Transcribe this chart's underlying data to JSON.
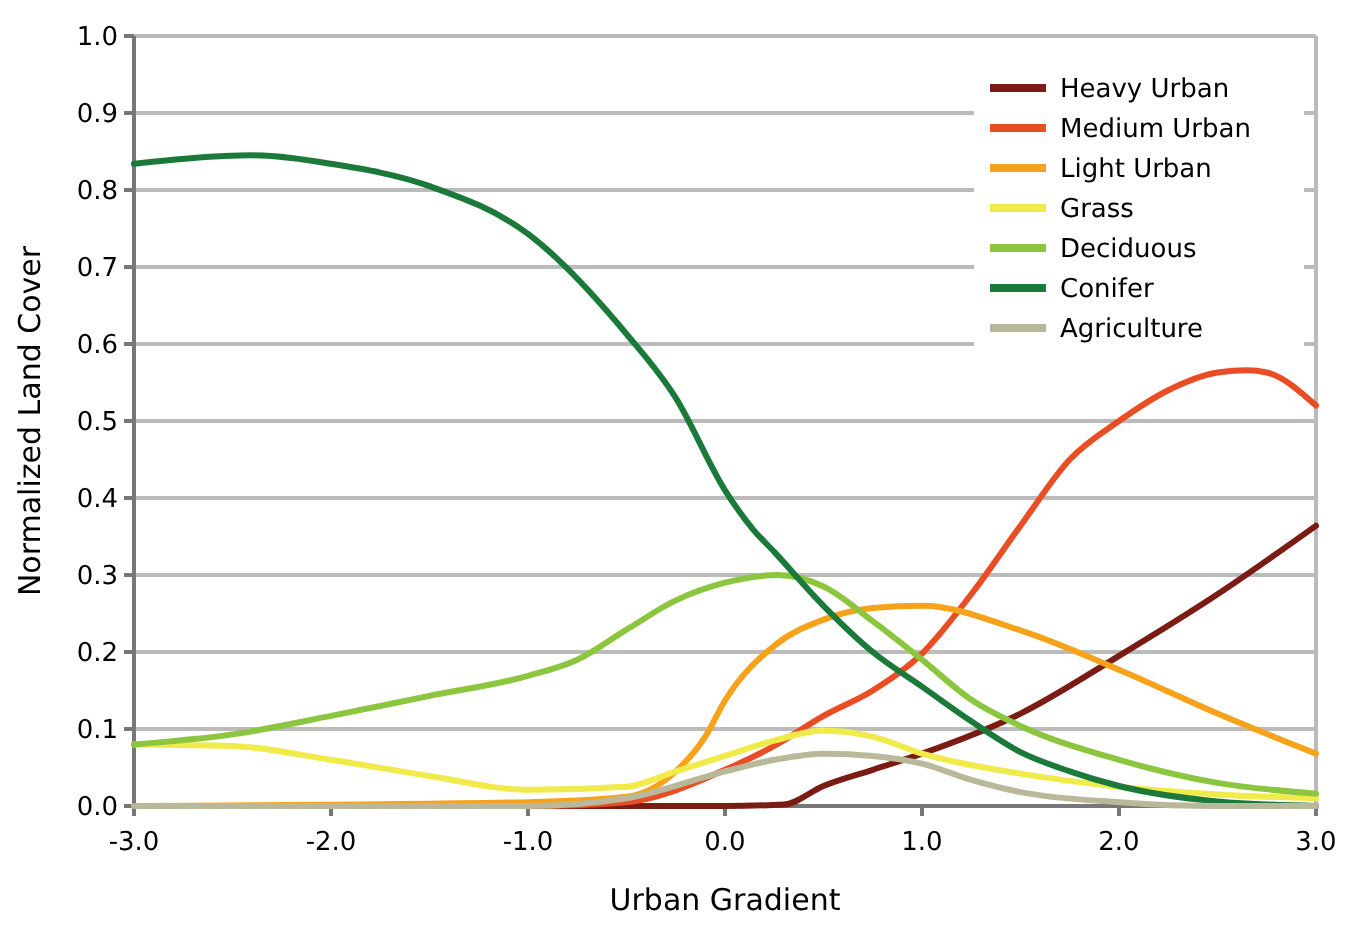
{
  "chart_data": {
    "type": "line",
    "xlabel": "Urban Gradient",
    "ylabel": "Normalized Land Cover",
    "xlim": [
      -3,
      3
    ],
    "ylim": [
      0,
      1
    ],
    "xticks": [
      {
        "value": -3,
        "label": "-3.0"
      },
      {
        "value": -2,
        "label": "-2.0"
      },
      {
        "value": -1,
        "label": "-1.0"
      },
      {
        "value": 0,
        "label": "0.0"
      },
      {
        "value": 1,
        "label": "1.0"
      },
      {
        "value": 2,
        "label": "2.0"
      },
      {
        "value": 3,
        "label": "3.0"
      }
    ],
    "yticks": [
      {
        "value": 0,
        "label": "0.0"
      },
      {
        "value": 0.1,
        "label": "0.1"
      },
      {
        "value": 0.2,
        "label": "0.2"
      },
      {
        "value": 0.3,
        "label": "0.3"
      },
      {
        "value": 0.4,
        "label": "0.4"
      },
      {
        "value": 0.5,
        "label": "0.5"
      },
      {
        "value": 0.6,
        "label": "0.6"
      },
      {
        "value": 0.7,
        "label": "0.7"
      },
      {
        "value": 0.8,
        "label": "0.8"
      },
      {
        "value": 0.9,
        "label": "0.9"
      },
      {
        "value": 1,
        "label": "1.0"
      }
    ],
    "grid": "y",
    "legend": "top right",
    "marker": "none",
    "line_style": "solid",
    "series": [
      {
        "name": "Heavy Urban",
        "color": "#7b1c14",
        "x": [
          -3,
          -1,
          0,
          0.3,
          0.5,
          0.75,
          1,
          1.5,
          2,
          2.5,
          3
        ],
        "values": [
          0,
          0,
          0,
          0.002,
          0.026,
          0.047,
          0.068,
          0.12,
          0.195,
          0.275,
          0.364
        ]
      },
      {
        "name": "Medium Urban",
        "color": "#ea4c24",
        "x": [
          -3,
          -1,
          -0.5,
          0,
          0.25,
          0.5,
          0.75,
          1,
          1.25,
          1.5,
          1.75,
          2,
          2.25,
          2.5,
          2.65,
          2.75,
          3
        ],
        "values": [
          0,
          0,
          0.005,
          0.047,
          0.078,
          0.117,
          0.15,
          0.198,
          0.275,
          0.364,
          0.45,
          0.5,
          0.54,
          0.563,
          0.566,
          0.563,
          0.52
        ]
      },
      {
        "name": "Light Urban",
        "color": "#f7a21b",
        "x": [
          -3,
          -1,
          -0.5,
          -0.25,
          -0.1,
          0,
          0.25,
          0.5,
          0.75,
          1,
          1.5,
          2,
          2.5,
          3
        ],
        "values": [
          0,
          0.005,
          0.012,
          0.045,
          0.09,
          0.137,
          0.208,
          0.242,
          0.257,
          0.26,
          0.228,
          0.177,
          0.12,
          0.068
        ]
      },
      {
        "name": "Grass",
        "color": "#f0ea4a",
        "x": [
          -3,
          -2.5,
          -2,
          -1.5,
          -1,
          -0.5,
          -0.25,
          0,
          0.25,
          0.5,
          0.75,
          1,
          1.5,
          2,
          2.5,
          3
        ],
        "values": [
          0.08,
          0.078,
          0.06,
          0.039,
          0.021,
          0.025,
          0.045,
          0.065,
          0.085,
          0.098,
          0.09,
          0.068,
          0.042,
          0.025,
          0.015,
          0.01
        ]
      },
      {
        "name": "Deciduous",
        "color": "#8cc63f",
        "x": [
          -3,
          -2.5,
          -2,
          -1.5,
          -1,
          -0.75,
          -0.5,
          -0.25,
          0,
          0.27,
          0.5,
          0.75,
          1,
          1.25,
          1.5,
          2,
          2.5,
          3
        ],
        "values": [
          0.08,
          0.093,
          0.117,
          0.143,
          0.169,
          0.19,
          0.229,
          0.267,
          0.29,
          0.3,
          0.285,
          0.24,
          0.19,
          0.138,
          0.104,
          0.06,
          0.03,
          0.016
        ]
      },
      {
        "name": "Conifer",
        "color": "#1b7a3a",
        "x": [
          -3,
          -2.4,
          -2,
          -1.5,
          -1,
          -0.5,
          -0.25,
          0,
          0.14,
          0.25,
          0.5,
          0.75,
          1,
          1.25,
          1.5,
          1.75,
          2,
          2.5,
          3
        ],
        "values": [
          0.834,
          0.845,
          0.834,
          0.805,
          0.743,
          0.613,
          0.53,
          0.41,
          0.36,
          0.33,
          0.26,
          0.2,
          0.155,
          0.11,
          0.07,
          0.045,
          0.026,
          0.006,
          0
        ]
      },
      {
        "name": "Agriculture",
        "color": "#b9b89a",
        "x": [
          -3,
          -1,
          -0.5,
          0,
          0.25,
          0.5,
          0.75,
          1,
          1.25,
          1.5,
          2,
          2.5,
          3
        ],
        "values": [
          0,
          0,
          0.01,
          0.045,
          0.06,
          0.068,
          0.065,
          0.055,
          0.034,
          0.018,
          0.005,
          0,
          0
        ]
      }
    ]
  }
}
